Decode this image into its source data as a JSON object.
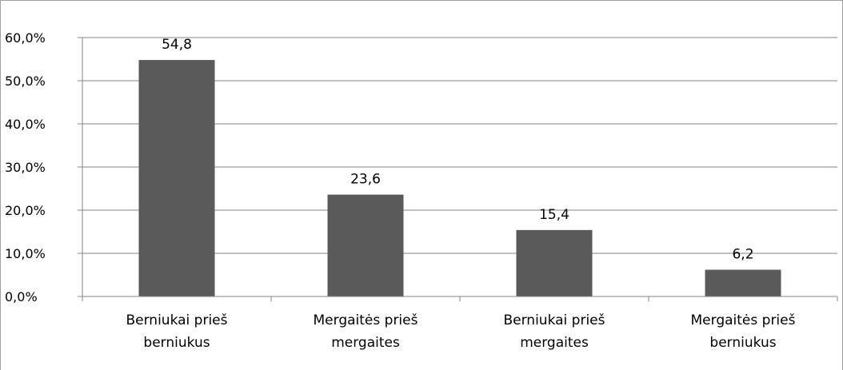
{
  "chart_data": {
    "type": "bar",
    "categories": [
      [
        "Berniukai prieš",
        "berniukus"
      ],
      [
        "Mergaitės prieš",
        "mergaites"
      ],
      [
        "Berniukai prieš",
        "mergaites"
      ],
      [
        "Mergaitės prieš",
        "berniukus"
      ]
    ],
    "values": [
      54.8,
      23.6,
      15.4,
      6.2
    ],
    "data_labels": [
      "54,8",
      "23,6",
      "15,4",
      "6,2"
    ],
    "y_ticks": [
      "0,0%",
      "10,0%",
      "20,0%",
      "30,0%",
      "40,0%",
      "50,0%",
      "60,0%"
    ],
    "ylim": [
      0,
      60
    ],
    "grid": true,
    "bar_color": "#5a5a5a",
    "grid_color": "#868686"
  }
}
